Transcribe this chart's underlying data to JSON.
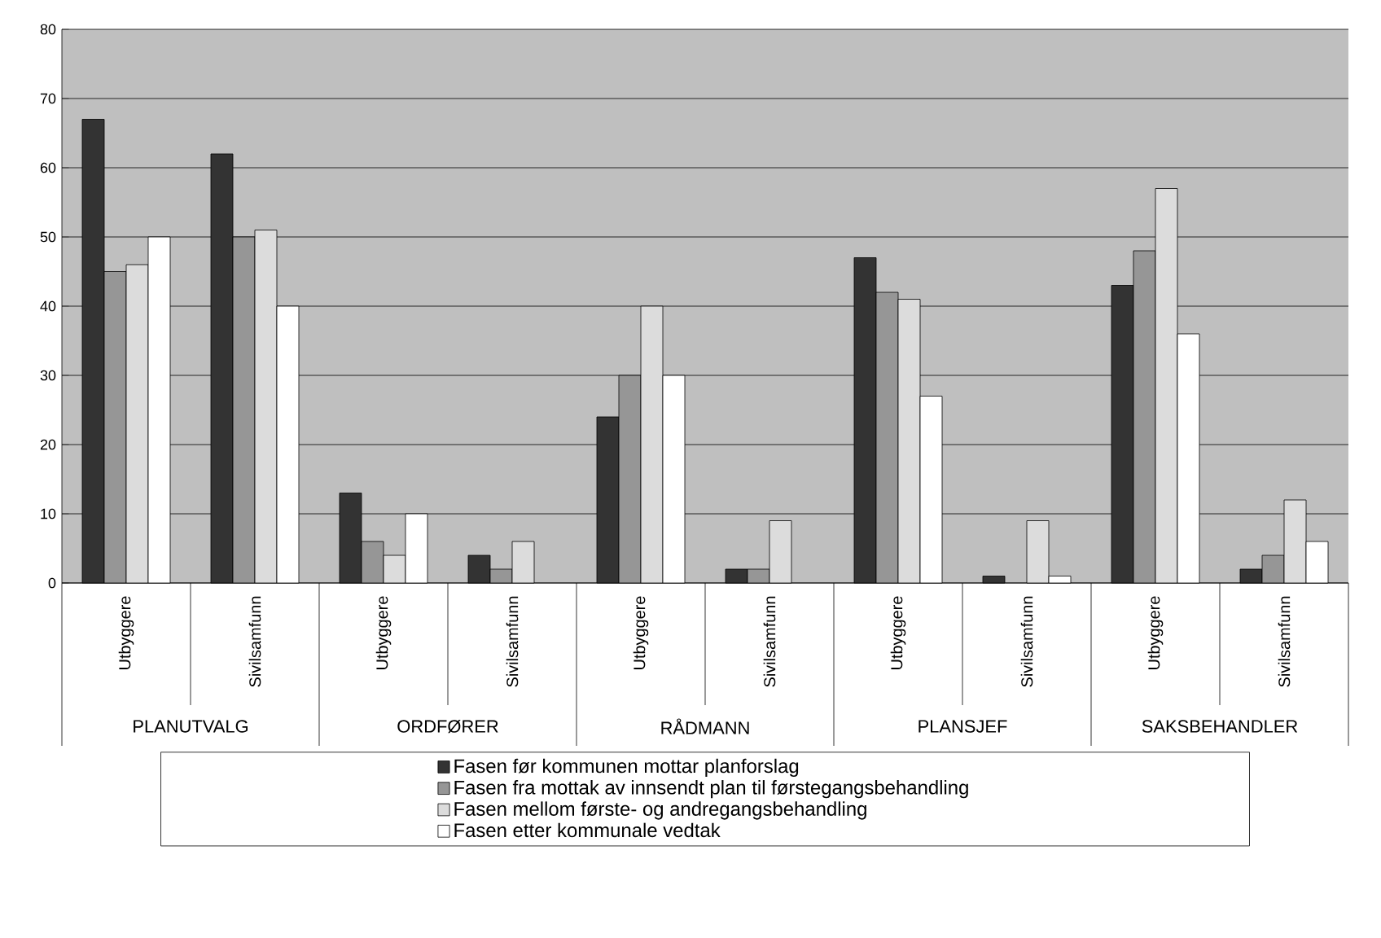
{
  "chart_data": {
    "type": "bar",
    "categories": [
      "Utbyggere",
      "Sivilsamfunn",
      "Utbyggere",
      "Sivilsamfunn",
      "Utbyggere",
      "Sivilsamfunn",
      "Utbyggere",
      "Sivilsamfunn",
      "Utbyggere",
      "Sivilsamfunn"
    ],
    "annotations": [
      "PLANUTVALG",
      "ORDFØRER",
      "RÅDMANN",
      "PLANSJEF",
      "SAKSBEHANDLER"
    ],
    "series": [
      {
        "name": "Fasen før kommunen mottar planforslag",
        "color": "#333333",
        "values": [
          67,
          62,
          13,
          4,
          24,
          2,
          47,
          1,
          43,
          2
        ]
      },
      {
        "name": "Fasen fra mottak av innsendt plan til førstegangsbehandling",
        "color": "#969696",
        "values": [
          45,
          50,
          6,
          2,
          30,
          2,
          42,
          null,
          48,
          4
        ]
      },
      {
        "name": "Fasen mellom første- og andregangsbehandling",
        "color": "#dcdcdc",
        "values": [
          46,
          51,
          4,
          6,
          40,
          9,
          41,
          9,
          57,
          12
        ]
      },
      {
        "name": "Fasen etter kommunale vedtak",
        "color": "#ffffff",
        "values": [
          50,
          40,
          10,
          null,
          30,
          null,
          27,
          1,
          36,
          6
        ]
      }
    ],
    "ylim": [
      0,
      80
    ],
    "yticks": [
      0,
      10,
      20,
      30,
      40,
      50,
      60,
      70,
      80
    ],
    "grid": "y",
    "legend": "bottom"
  }
}
